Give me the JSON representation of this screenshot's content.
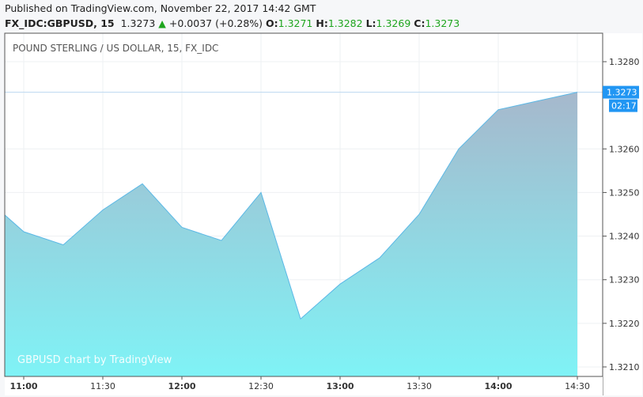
{
  "header": {
    "published": "Published on TradingView.com, November 22, 2017 14:42 GMT",
    "symbol": "FX_IDC:GBPUSD, 15",
    "last": "1.3273",
    "change": "+0.0037 (+0.28%)",
    "o_label": "O:",
    "o": "1.3271",
    "h_label": "H:",
    "h": "1.3282",
    "l_label": "L:",
    "l": "1.3269",
    "c_label": "C:",
    "c": "1.3273"
  },
  "chart_data": {
    "type": "area",
    "title": "POUND STERLING / US DOLLAR, 15, FX_IDC",
    "watermark": "GBPUSD chart by TradingView",
    "x": [
      "10:45",
      "11:00",
      "11:15",
      "11:30",
      "11:45",
      "12:00",
      "12:15",
      "12:30",
      "12:45",
      "13:00",
      "13:15",
      "13:30",
      "13:45",
      "14:00",
      "14:15",
      "14:30"
    ],
    "values": [
      1.3249,
      1.3241,
      1.3238,
      1.3246,
      1.3252,
      1.3242,
      1.3239,
      1.325,
      1.3221,
      1.3229,
      1.3235,
      1.3245,
      1.326,
      1.3269,
      1.3271,
      1.3273
    ],
    "x_ticks": [
      {
        "t": "11:00",
        "bold": true
      },
      {
        "t": "11:30"
      },
      {
        "t": "12:00",
        "bold": true
      },
      {
        "t": "12:30"
      },
      {
        "t": "13:00",
        "bold": true
      },
      {
        "t": "13:30"
      },
      {
        "t": "14:00",
        "bold": true
      },
      {
        "t": "14:30"
      }
    ],
    "y_ticks": [
      "1.3210",
      "1.3220",
      "1.3230",
      "1.3240",
      "1.3250",
      "1.3260",
      "1.3280"
    ],
    "ylim": [
      1.3207,
      1.3287
    ],
    "last_price_label": "1.3273",
    "countdown": "02:17",
    "colors": {
      "line": "#5bb8e6",
      "fill_top": "#a6b8cc",
      "fill_bottom": "#7ff3f6",
      "price_tag": "#2196f3",
      "change_up": "#1ea51e"
    }
  }
}
